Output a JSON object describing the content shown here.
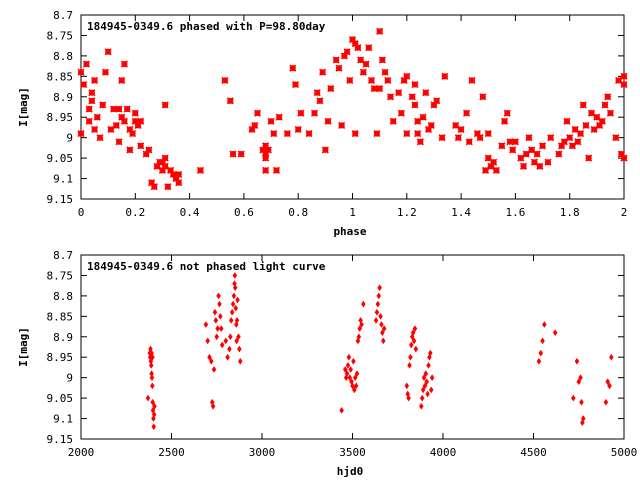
{
  "chart_data": [
    {
      "type": "scatter",
      "title": "184945-0349.6 phased with P=98.80day",
      "xlabel": "phase",
      "ylabel": "I[mag]",
      "xlim": [
        0,
        2
      ],
      "ylim": [
        9.15,
        8.7
      ],
      "y_inverted": true,
      "grid": false,
      "x_ticks": [
        "0",
        "0.2",
        "0.4",
        "0.6",
        "0.8",
        "1",
        "1.2",
        "1.4",
        "1.6",
        "1.8",
        "2"
      ],
      "x_tick_values": [
        0,
        0.2,
        0.4,
        0.6,
        0.8,
        1.0,
        1.2,
        1.4,
        1.6,
        1.8,
        2.0
      ],
      "y_ticks": [
        "8.7",
        "8.75",
        "8.8",
        "8.85",
        "8.9",
        "8.95",
        "9",
        "9.05",
        "9.1",
        "9.15"
      ],
      "y_tick_values": [
        8.7,
        8.75,
        8.8,
        8.85,
        8.9,
        8.95,
        9.0,
        9.05,
        9.1,
        9.15
      ],
      "marker": "star",
      "color": "#ff0000",
      "points": [
        [
          0.0,
          8.84
        ],
        [
          0.0,
          8.99
        ],
        [
          0.01,
          8.87
        ],
        [
          0.02,
          8.82
        ],
        [
          0.03,
          8.96
        ],
        [
          0.03,
          8.93
        ],
        [
          0.04,
          8.89
        ],
        [
          0.04,
          8.91
        ],
        [
          0.05,
          8.86
        ],
        [
          0.05,
          8.98
        ],
        [
          0.06,
          8.95
        ],
        [
          0.07,
          9.0
        ],
        [
          0.08,
          8.92
        ],
        [
          0.09,
          8.84
        ],
        [
          0.1,
          8.79
        ],
        [
          0.11,
          8.98
        ],
        [
          0.12,
          8.93
        ],
        [
          0.13,
          8.97
        ],
        [
          0.14,
          8.93
        ],
        [
          0.14,
          9.01
        ],
        [
          0.15,
          8.95
        ],
        [
          0.15,
          8.86
        ],
        [
          0.16,
          8.96
        ],
        [
          0.16,
          8.82
        ],
        [
          0.17,
          8.93
        ],
        [
          0.18,
          8.98
        ],
        [
          0.18,
          9.03
        ],
        [
          0.19,
          8.99
        ],
        [
          0.2,
          8.94
        ],
        [
          0.2,
          8.96
        ],
        [
          0.21,
          8.97
        ],
        [
          0.22,
          8.96
        ],
        [
          0.22,
          9.02
        ],
        [
          0.24,
          9.04
        ],
        [
          0.25,
          9.03
        ],
        [
          0.26,
          9.11
        ],
        [
          0.27,
          9.12
        ],
        [
          0.28,
          9.07
        ],
        [
          0.29,
          9.06
        ],
        [
          0.3,
          9.08
        ],
        [
          0.3,
          9.06
        ],
        [
          0.31,
          9.07
        ],
        [
          0.31,
          9.05
        ],
        [
          0.31,
          8.92
        ],
        [
          0.32,
          9.12
        ],
        [
          0.33,
          9.08
        ],
        [
          0.34,
          9.09
        ],
        [
          0.35,
          9.1
        ],
        [
          0.36,
          9.11
        ],
        [
          0.36,
          9.09
        ],
        [
          0.44,
          9.08
        ],
        [
          0.53,
          8.86
        ],
        [
          0.55,
          8.91
        ],
        [
          0.56,
          9.04
        ],
        [
          0.59,
          9.04
        ],
        [
          0.63,
          8.98
        ],
        [
          0.64,
          8.97
        ],
        [
          0.65,
          8.94
        ],
        [
          0.67,
          9.03
        ],
        [
          0.68,
          9.02
        ],
        [
          0.68,
          9.04
        ],
        [
          0.68,
          9.05
        ],
        [
          0.69,
          9.03
        ],
        [
          0.68,
          9.08
        ],
        [
          0.7,
          8.96
        ],
        [
          0.71,
          8.99
        ],
        [
          0.72,
          9.08
        ],
        [
          0.73,
          8.95
        ],
        [
          0.76,
          8.99
        ],
        [
          0.78,
          8.83
        ],
        [
          0.79,
          8.87
        ],
        [
          0.8,
          8.98
        ],
        [
          0.81,
          8.94
        ],
        [
          0.84,
          8.99
        ],
        [
          0.86,
          8.94
        ],
        [
          0.87,
          8.89
        ],
        [
          0.88,
          8.91
        ],
        [
          0.89,
          8.84
        ],
        [
          0.9,
          9.03
        ],
        [
          0.91,
          8.96
        ],
        [
          0.92,
          8.88
        ],
        [
          0.94,
          8.81
        ],
        [
          0.95,
          8.83
        ],
        [
          0.96,
          8.97
        ],
        [
          0.97,
          8.8
        ],
        [
          0.98,
          8.79
        ],
        [
          0.99,
          8.86
        ],
        [
          1.0,
          8.76
        ],
        [
          1.01,
          8.77
        ],
        [
          1.01,
          8.99
        ],
        [
          1.02,
          8.78
        ],
        [
          1.03,
          8.81
        ],
        [
          1.04,
          8.84
        ],
        [
          1.05,
          8.82
        ],
        [
          1.06,
          8.78
        ],
        [
          1.07,
          8.86
        ],
        [
          1.08,
          8.88
        ],
        [
          1.09,
          8.99
        ],
        [
          1.1,
          8.74
        ],
        [
          1.1,
          8.88
        ],
        [
          1.11,
          8.81
        ],
        [
          1.12,
          8.84
        ],
        [
          1.13,
          8.86
        ],
        [
          1.14,
          8.9
        ],
        [
          1.15,
          8.96
        ],
        [
          1.17,
          8.89
        ],
        [
          1.18,
          8.94
        ],
        [
          1.19,
          8.86
        ],
        [
          1.2,
          8.85
        ],
        [
          1.2,
          8.99
        ],
        [
          1.22,
          8.9
        ],
        [
          1.23,
          8.87
        ],
        [
          1.23,
          8.92
        ],
        [
          1.24,
          8.96
        ],
        [
          1.24,
          8.99
        ],
        [
          1.25,
          9.01
        ],
        [
          1.26,
          8.95
        ],
        [
          1.27,
          8.89
        ],
        [
          1.28,
          8.98
        ],
        [
          1.29,
          8.97
        ],
        [
          1.3,
          8.92
        ],
        [
          1.31,
          8.91
        ],
        [
          1.33,
          9.0
        ],
        [
          1.34,
          8.85
        ],
        [
          1.38,
          8.97
        ],
        [
          1.39,
          9.0
        ],
        [
          1.4,
          8.98
        ],
        [
          1.42,
          8.94
        ],
        [
          1.43,
          9.01
        ],
        [
          1.44,
          8.86
        ],
        [
          1.46,
          8.99
        ],
        [
          1.47,
          9.0
        ],
        [
          1.48,
          8.9
        ],
        [
          1.49,
          9.08
        ],
        [
          1.5,
          8.99
        ],
        [
          1.5,
          9.05
        ],
        [
          1.51,
          9.07
        ],
        [
          1.52,
          9.06
        ],
        [
          1.53,
          9.08
        ],
        [
          1.55,
          9.02
        ],
        [
          1.56,
          8.96
        ],
        [
          1.57,
          8.94
        ],
        [
          1.58,
          9.01
        ],
        [
          1.59,
          9.03
        ],
        [
          1.6,
          9.01
        ],
        [
          1.62,
          9.05
        ],
        [
          1.63,
          9.07
        ],
        [
          1.64,
          9.04
        ],
        [
          1.65,
          9.0
        ],
        [
          1.66,
          9.03
        ],
        [
          1.67,
          9.06
        ],
        [
          1.68,
          9.04
        ],
        [
          1.69,
          9.07
        ],
        [
          1.7,
          9.02
        ],
        [
          1.72,
          9.06
        ],
        [
          1.73,
          9.0
        ],
        [
          1.76,
          9.04
        ],
        [
          1.77,
          9.02
        ],
        [
          1.78,
          9.01
        ],
        [
          1.79,
          8.96
        ],
        [
          1.8,
          9.0
        ],
        [
          1.81,
          9.02
        ],
        [
          1.82,
          8.98
        ],
        [
          1.83,
          9.01
        ],
        [
          1.84,
          8.99
        ],
        [
          1.85,
          8.92
        ],
        [
          1.86,
          8.97
        ],
        [
          1.87,
          9.05
        ],
        [
          1.88,
          8.94
        ],
        [
          1.89,
          8.98
        ],
        [
          1.9,
          8.95
        ],
        [
          1.91,
          8.97
        ],
        [
          1.92,
          8.96
        ],
        [
          1.93,
          8.92
        ],
        [
          1.94,
          8.9
        ],
        [
          1.95,
          8.94
        ],
        [
          1.97,
          9.0
        ],
        [
          1.98,
          8.86
        ],
        [
          1.99,
          9.04
        ],
        [
          2.0,
          8.87
        ],
        [
          2.0,
          9.05
        ],
        [
          2.0,
          8.85
        ]
      ]
    },
    {
      "type": "scatter",
      "title": "184945-0349.6 not phased light curve",
      "xlabel": "hjd0",
      "ylabel": "I[mag]",
      "xlim": [
        2000,
        5000
      ],
      "ylim": [
        9.15,
        8.7
      ],
      "y_inverted": true,
      "grid": false,
      "x_ticks": [
        "2000",
        "2500",
        "3000",
        "3500",
        "4000",
        "4500",
        "5000"
      ],
      "x_tick_values": [
        2000,
        2500,
        3000,
        3500,
        4000,
        4500,
        5000
      ],
      "y_ticks": [
        "8.7",
        "8.75",
        "8.8",
        "8.85",
        "8.9",
        "8.95",
        "9",
        "9.05",
        "9.1",
        "9.15"
      ],
      "y_tick_values": [
        8.7,
        8.75,
        8.8,
        8.85,
        8.9,
        8.95,
        9.0,
        9.05,
        9.1,
        9.15
      ],
      "marker": "diamond",
      "color": "#ff0000",
      "points": [
        [
          2370,
          9.05
        ],
        [
          2380,
          8.94
        ],
        [
          2382,
          8.95
        ],
        [
          2384,
          8.93
        ],
        [
          2386,
          8.96
        ],
        [
          2388,
          8.97
        ],
        [
          2390,
          8.99
        ],
        [
          2392,
          9.0
        ],
        [
          2394,
          9.02
        ],
        [
          2396,
          9.06
        ],
        [
          2398,
          9.08
        ],
        [
          2400,
          9.1
        ],
        [
          2402,
          9.12
        ],
        [
          2404,
          9.09
        ],
        [
          2406,
          9.07
        ],
        [
          2395,
          8.95
        ],
        [
          2390,
          8.94
        ],
        [
          2690,
          8.87
        ],
        [
          2700,
          8.91
        ],
        [
          2710,
          8.95
        ],
        [
          2720,
          8.96
        ],
        [
          2725,
          9.06
        ],
        [
          2730,
          9.07
        ],
        [
          2735,
          8.98
        ],
        [
          2740,
          8.84
        ],
        [
          2745,
          8.86
        ],
        [
          2750,
          8.9
        ],
        [
          2755,
          8.88
        ],
        [
          2760,
          8.8
        ],
        [
          2765,
          8.82
        ],
        [
          2770,
          8.85
        ],
        [
          2775,
          8.88
        ],
        [
          2780,
          8.92
        ],
        [
          2800,
          8.91
        ],
        [
          2810,
          8.95
        ],
        [
          2820,
          8.93
        ],
        [
          2825,
          8.9
        ],
        [
          2830,
          8.86
        ],
        [
          2835,
          8.84
        ],
        [
          2840,
          8.82
        ],
        [
          2845,
          8.8
        ],
        [
          2848,
          8.77
        ],
        [
          2850,
          8.75
        ],
        [
          2852,
          8.78
        ],
        [
          2855,
          8.83
        ],
        [
          2858,
          8.87
        ],
        [
          2860,
          8.91
        ],
        [
          2862,
          8.86
        ],
        [
          2865,
          8.81
        ],
        [
          2870,
          8.9
        ],
        [
          2875,
          8.93
        ],
        [
          2880,
          8.96
        ],
        [
          3440,
          9.08
        ],
        [
          3460,
          8.98
        ],
        [
          3465,
          9.0
        ],
        [
          3470,
          8.99
        ],
        [
          3475,
          8.97
        ],
        [
          3480,
          8.95
        ],
        [
          3485,
          9.0
        ],
        [
          3490,
          8.98
        ],
        [
          3495,
          9.01
        ],
        [
          3500,
          9.02
        ],
        [
          3505,
          8.96
        ],
        [
          3510,
          9.03
        ],
        [
          3515,
          9.0
        ],
        [
          3520,
          9.02
        ],
        [
          3525,
          8.99
        ],
        [
          3530,
          8.91
        ],
        [
          3535,
          8.9
        ],
        [
          3540,
          8.88
        ],
        [
          3545,
          8.86
        ],
        [
          3550,
          8.87
        ],
        [
          3560,
          8.82
        ],
        [
          3630,
          8.86
        ],
        [
          3635,
          8.84
        ],
        [
          3640,
          8.82
        ],
        [
          3645,
          8.8
        ],
        [
          3650,
          8.78
        ],
        [
          3655,
          8.85
        ],
        [
          3660,
          8.87
        ],
        [
          3665,
          8.89
        ],
        [
          3670,
          8.91
        ],
        [
          3675,
          8.88
        ],
        [
          3800,
          9.02
        ],
        [
          3805,
          9.04
        ],
        [
          3810,
          9.05
        ],
        [
          3815,
          8.97
        ],
        [
          3820,
          8.95
        ],
        [
          3825,
          8.92
        ],
        [
          3830,
          8.9
        ],
        [
          3835,
          8.89
        ],
        [
          3840,
          8.91
        ],
        [
          3845,
          8.88
        ],
        [
          3850,
          8.93
        ],
        [
          3880,
          9.07
        ],
        [
          3885,
          9.05
        ],
        [
          3890,
          9.03
        ],
        [
          3895,
          9.0
        ],
        [
          3900,
          9.02
        ],
        [
          3905,
          8.99
        ],
        [
          3910,
          9.01
        ],
        [
          3915,
          9.04
        ],
        [
          3920,
          8.97
        ],
        [
          3925,
          8.95
        ],
        [
          3930,
          8.94
        ],
        [
          3935,
          9.03
        ],
        [
          3940,
          9.0
        ],
        [
          4530,
          8.96
        ],
        [
          4540,
          8.94
        ],
        [
          4550,
          8.91
        ],
        [
          4560,
          8.87
        ],
        [
          4620,
          8.89
        ],
        [
          4720,
          9.05
        ],
        [
          4740,
          8.96
        ],
        [
          4750,
          9.01
        ],
        [
          4760,
          9.0
        ],
        [
          4765,
          9.06
        ],
        [
          4770,
          9.11
        ],
        [
          4775,
          9.1
        ],
        [
          4900,
          9.06
        ],
        [
          4910,
          9.01
        ],
        [
          4920,
          9.02
        ],
        [
          4930,
          8.95
        ]
      ]
    }
  ]
}
